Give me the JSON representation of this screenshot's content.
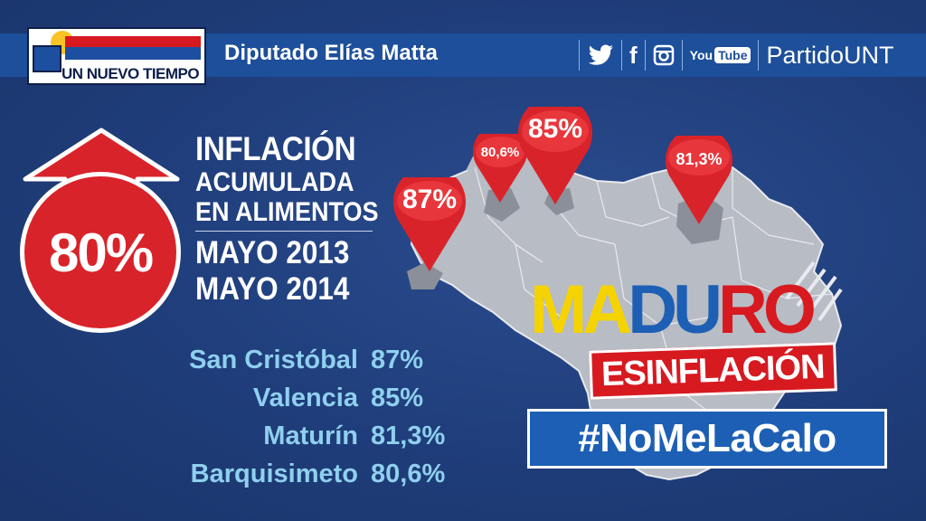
{
  "header": {
    "logo_text": "UN NUEVO TIEMPO",
    "deputy": "Diputado Elías Matta",
    "social": {
      "facebook_glyph": "f",
      "youtube_you": "You",
      "youtube_tube": "Tube",
      "party_handle": "PartidoUNT"
    }
  },
  "headline": {
    "percent": "80%",
    "line1": "INFLACIÓN",
    "line2": "ACUMULADA",
    "line3": "EN ALIMENTOS",
    "period_start": "MAYO 2013",
    "period_end": "MAYO 2014"
  },
  "cities": [
    {
      "name": "San Cristóbal",
      "value": "87%"
    },
    {
      "name": "Valencia",
      "value": "85%"
    },
    {
      "name": "Maturín",
      "value": "81,3%"
    },
    {
      "name": "Barquisimeto",
      "value": "80,6%"
    }
  ],
  "pins": {
    "san_cristobal": "87%",
    "barquisimeto": "80,6%",
    "valencia": "85%",
    "maturin": "81,3%"
  },
  "campaign": {
    "maduro_part1": "MA",
    "maduro_part2": "DU",
    "maduro_part3": "RO",
    "es_inflacion": "ESINFLACIÓN",
    "hashtag": "#NoMeLaCalo"
  },
  "colors": {
    "background": "#1f3d7a",
    "header_band": "#1d4f9a",
    "accent_red": "#d9232a",
    "city_text": "#8fd0ee",
    "yellow": "#f5d300"
  }
}
